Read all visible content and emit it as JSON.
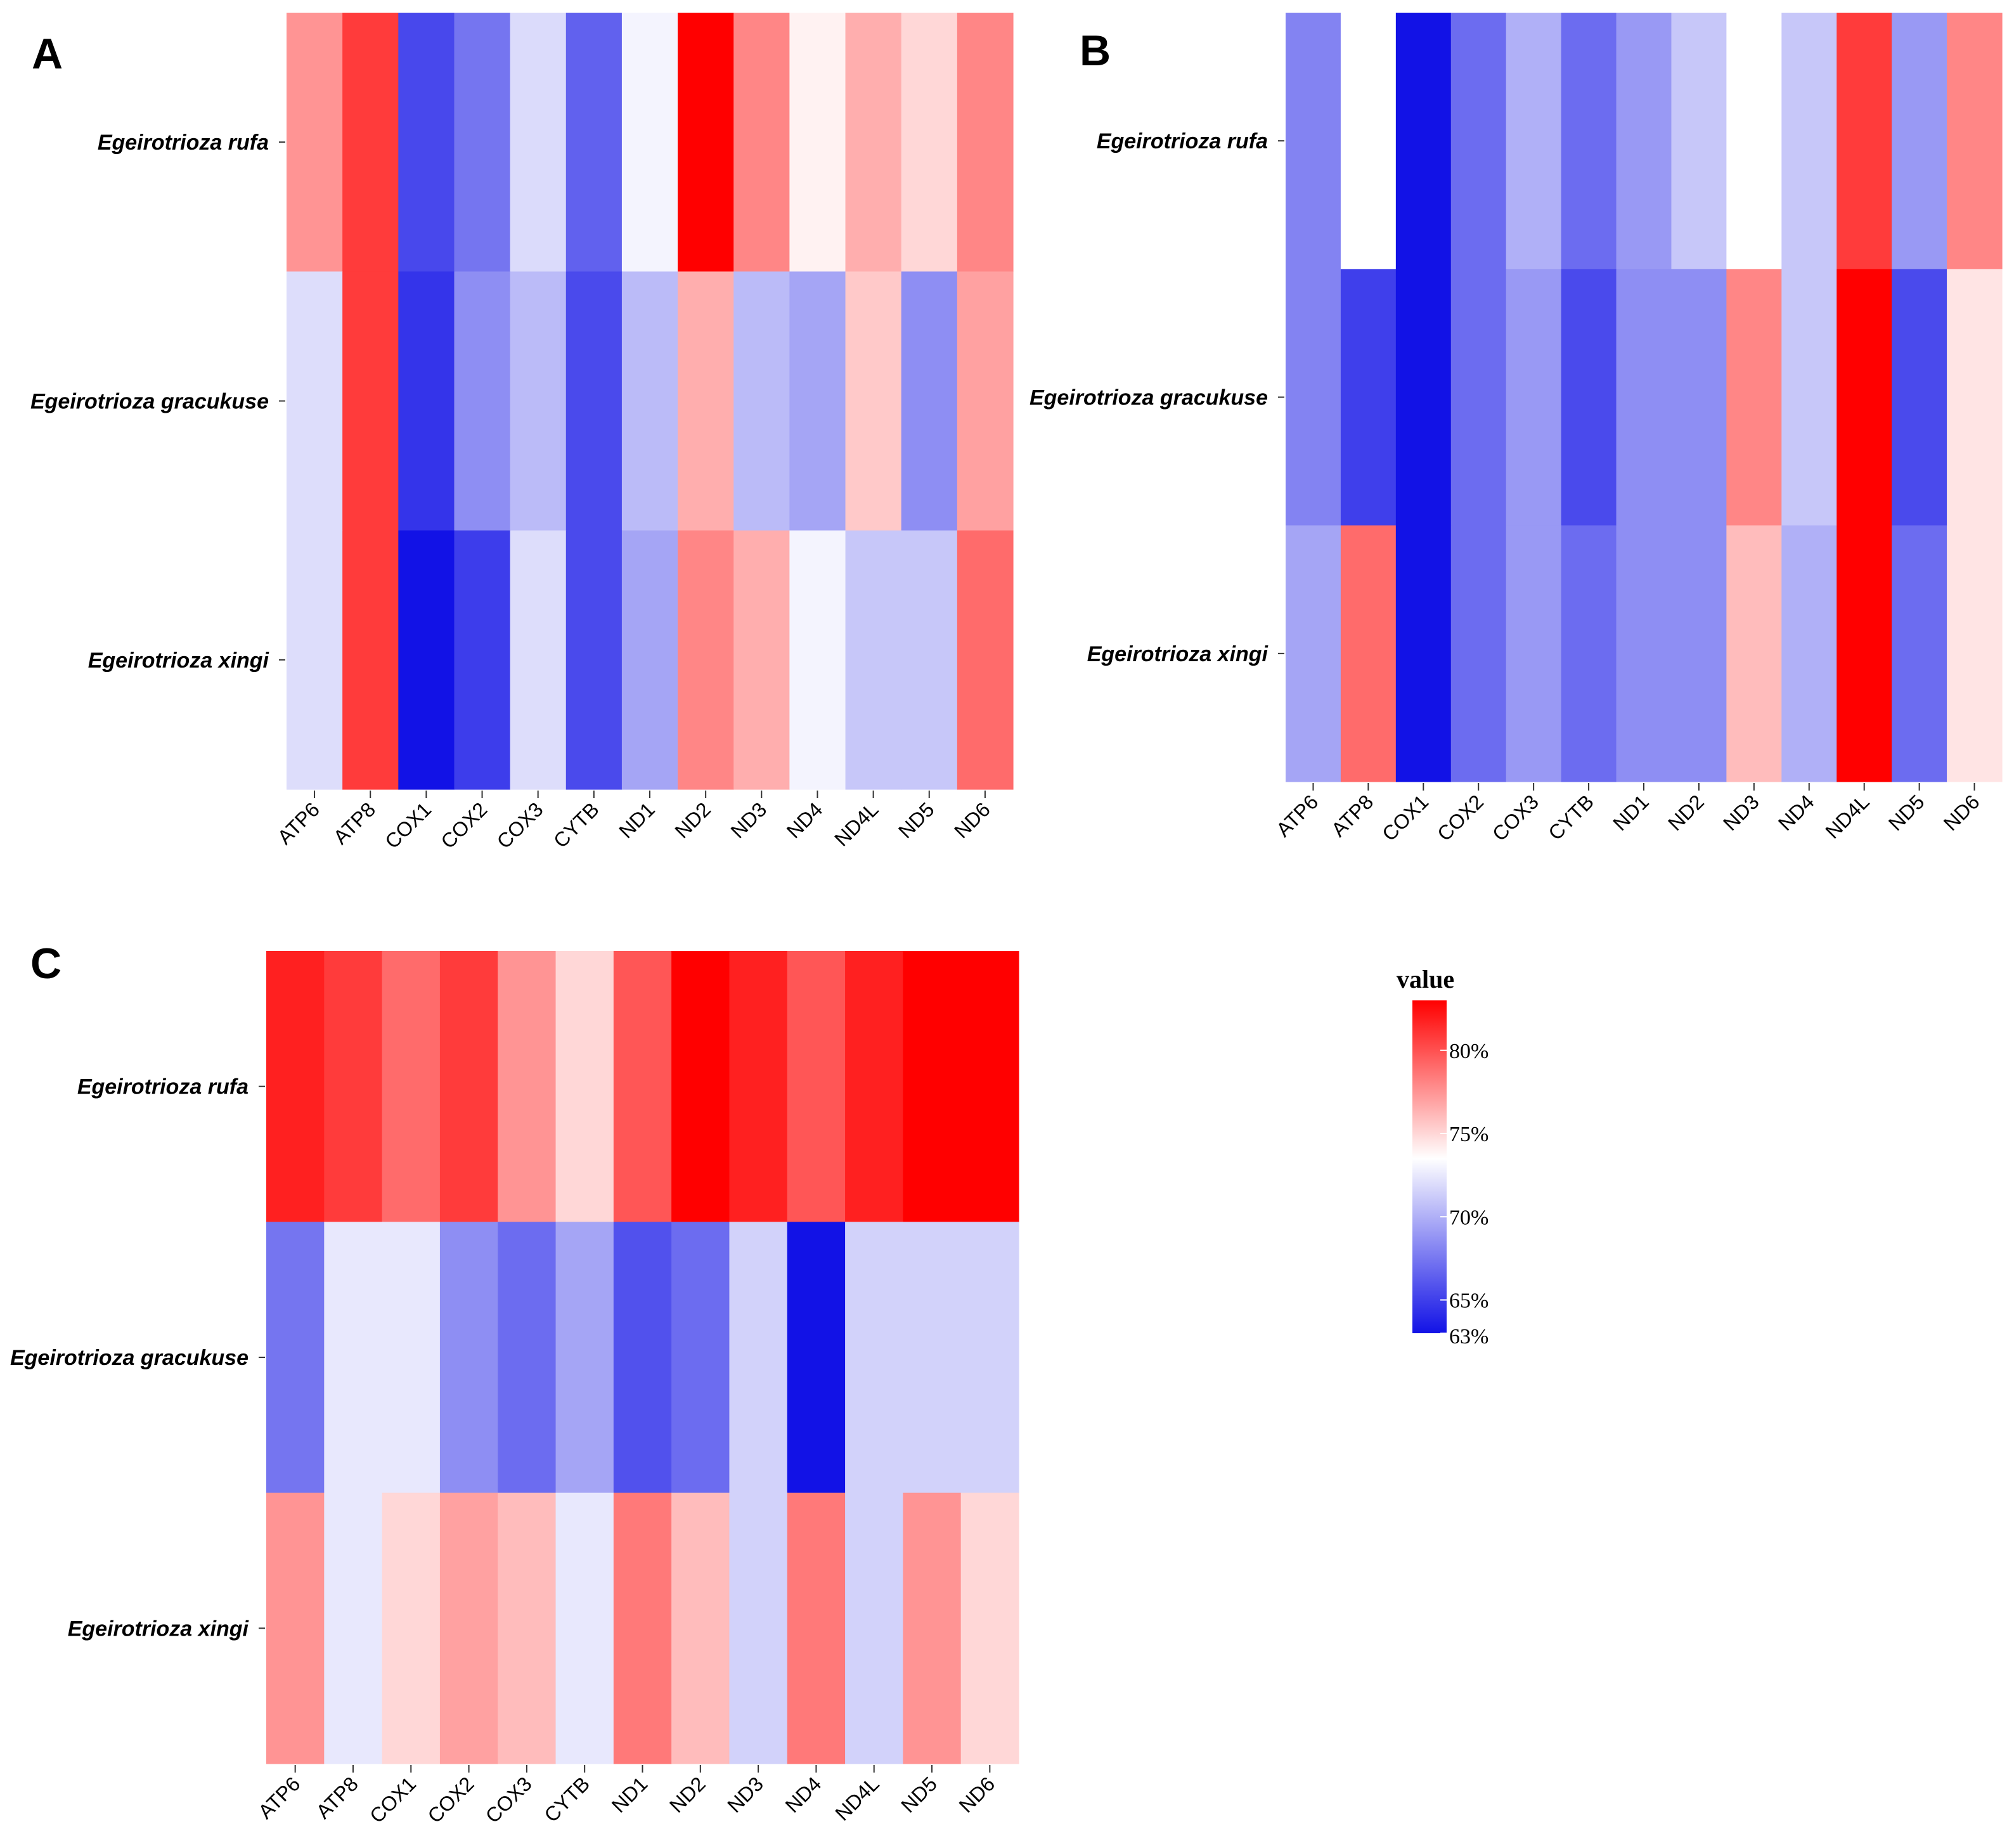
{
  "chart_data": [
    {
      "panel": "A",
      "type": "heatmap",
      "rows": [
        "Egeirotrioza rufa",
        "Egeirotrioza gracukuse",
        "Egeirotrioza xingi"
      ],
      "columns": [
        "ATP6",
        "ATP8",
        "COX1",
        "COX2",
        "COX3",
        "CYTB",
        "ND1",
        "ND2",
        "ND3",
        "ND4",
        "ND4L",
        "ND5",
        "ND6"
      ],
      "values": [
        [
          77.5,
          80.8,
          65.4,
          67.4,
          71.9,
          66.5,
          73.0,
          83.0,
          78.0,
          74.0,
          76.5,
          75.0,
          78.0
        ],
        [
          72.0,
          80.8,
          64.5,
          68.5,
          70.5,
          65.5,
          70.5,
          76.5,
          70.5,
          69.5,
          75.5,
          68.5,
          77.0
        ],
        [
          72.0,
          80.8,
          63.0,
          64.9,
          72.0,
          65.5,
          69.5,
          78.0,
          76.5,
          73.0,
          71.0,
          71.0,
          79.0
        ]
      ]
    },
    {
      "panel": "B",
      "type": "heatmap",
      "rows": [
        "Egeirotrioza rufa",
        "Egeirotrioza gracukuse",
        "Egeirotrioza xingi"
      ],
      "columns": [
        "ATP6",
        "ATP8",
        "COX1",
        "COX2",
        "COX3",
        "CYTB",
        "ND1",
        "ND2",
        "ND3",
        "ND4",
        "ND4L",
        "ND5",
        "ND6"
      ],
      "values": [
        [
          68.0,
          73.5,
          63.0,
          67.0,
          70.0,
          67.0,
          69.0,
          71.0,
          73.5,
          71.0,
          80.8,
          69.0,
          78.0
        ],
        [
          68.0,
          65.0,
          63.0,
          67.0,
          69.0,
          65.5,
          68.5,
          68.5,
          78.0,
          71.0,
          83.0,
          65.5,
          74.5
        ],
        [
          69.5,
          79.0,
          63.0,
          67.0,
          69.0,
          67.0,
          68.5,
          68.5,
          76.0,
          70.0,
          83.0,
          67.0,
          74.5
        ]
      ]
    },
    {
      "panel": "C",
      "type": "heatmap",
      "rows": [
        "Egeirotrioza rufa",
        "Egeirotrioza gracukuse",
        "Egeirotrioza xingi"
      ],
      "columns": [
        "ATP6",
        "ATP8",
        "COX1",
        "COX2",
        "COX3",
        "CYTB",
        "ND1",
        "ND2",
        "ND3",
        "ND4",
        "ND4L",
        "ND5",
        "ND6"
      ],
      "values": [
        [
          81.8,
          80.8,
          79.0,
          80.8,
          77.5,
          75.0,
          79.8,
          83.0,
          81.8,
          79.8,
          81.8,
          83.0,
          83.0
        ],
        [
          67.4,
          72.5,
          72.5,
          68.5,
          67.0,
          69.5,
          65.8,
          67.0,
          71.5,
          63.0,
          71.5,
          71.5,
          71.5
        ],
        [
          77.5,
          72.5,
          75.0,
          77.0,
          76.0,
          72.5,
          78.5,
          76.0,
          71.5,
          78.5,
          71.5,
          77.5,
          75.0
        ]
      ]
    }
  ],
  "panel_letters": [
    "A",
    "B",
    "C"
  ],
  "legend": {
    "title": "value",
    "min": 63,
    "max": 83,
    "ticks": [
      63,
      65,
      70,
      75,
      80
    ],
    "tick_labels": [
      "63%",
      "65%",
      "70%",
      "75%",
      "80%"
    ],
    "color_low": "#1212e6",
    "color_mid": "#ffffff",
    "color_high": "#ff0000",
    "midpoint": 73.5
  }
}
